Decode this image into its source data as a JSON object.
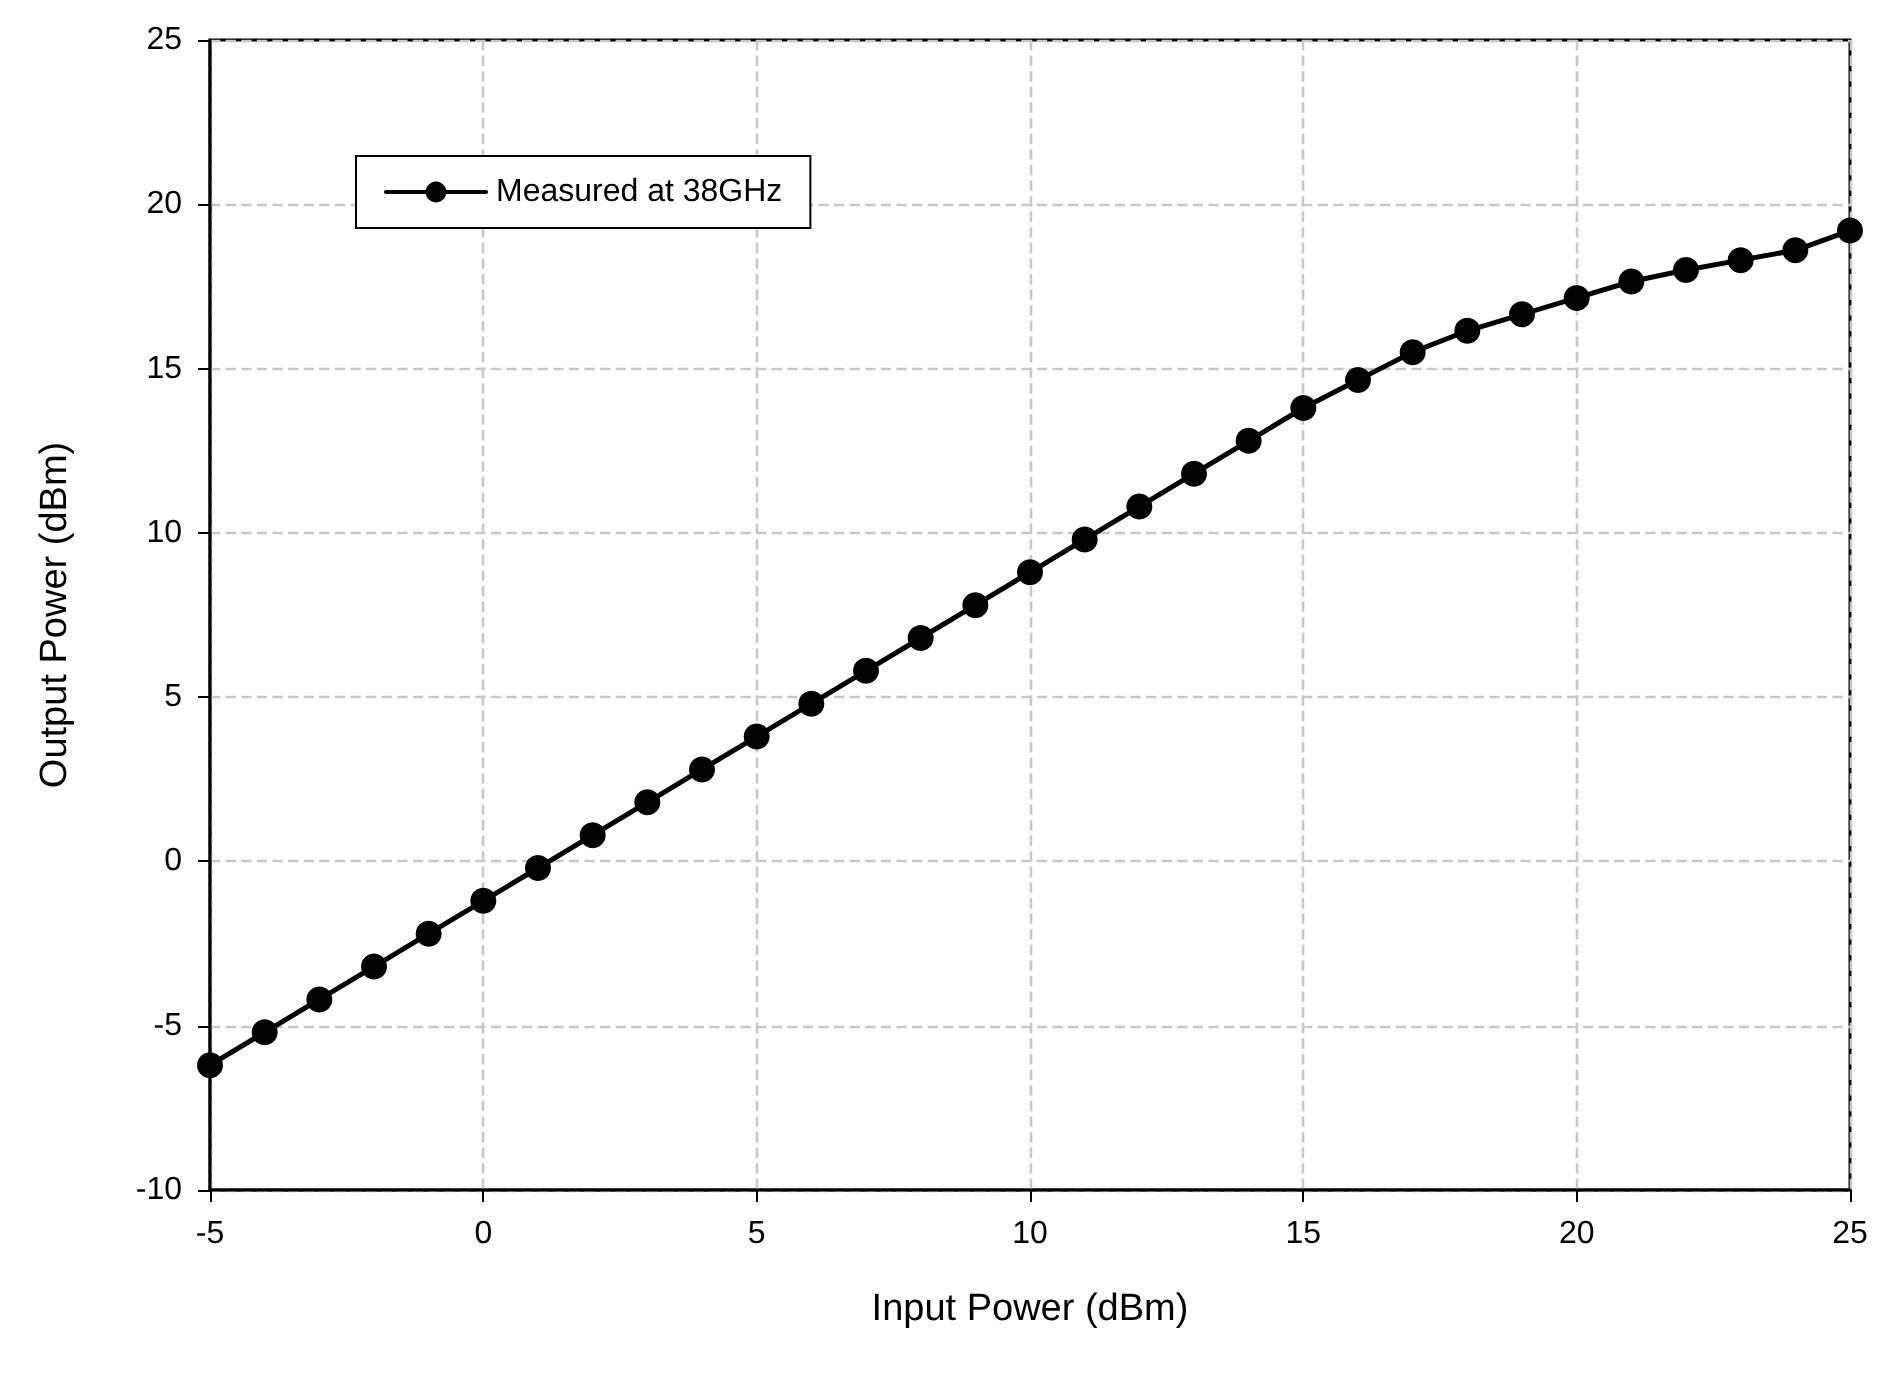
{
  "chart_data": {
    "type": "line",
    "xlabel": "Input Power (dBm)",
    "ylabel": "Output Power (dBm)",
    "x": [
      -5,
      -4,
      -3,
      -2,
      -1,
      0,
      1,
      2,
      3,
      4,
      5,
      6,
      7,
      8,
      9,
      10,
      11,
      12,
      13,
      14,
      15,
      16,
      17,
      18,
      19,
      20,
      21,
      22,
      23,
      24,
      25
    ],
    "series": [
      {
        "name": "Measured at 38GHz",
        "color": "#000000",
        "values": [
          -6.2,
          -5.2,
          -4.2,
          -3.2,
          -2.2,
          -1.2,
          -0.2,
          0.8,
          1.8,
          2.8,
          3.8,
          4.8,
          5.8,
          6.8,
          7.8,
          8.8,
          9.8,
          10.8,
          11.8,
          12.8,
          13.8,
          14.65,
          15.5,
          16.15,
          16.65,
          17.15,
          17.65,
          18.0,
          18.3,
          18.6,
          19.2
        ]
      }
    ],
    "xlim": [
      -5,
      25
    ],
    "xticks": [
      -5,
      0,
      5,
      10,
      15,
      20,
      25
    ],
    "ylim": [
      -10,
      25
    ],
    "yticks": [
      -10,
      -5,
      0,
      5,
      10,
      15,
      20,
      25
    ],
    "grid": true,
    "legend": "top left",
    "marker": "circle",
    "line_style": "solid"
  }
}
